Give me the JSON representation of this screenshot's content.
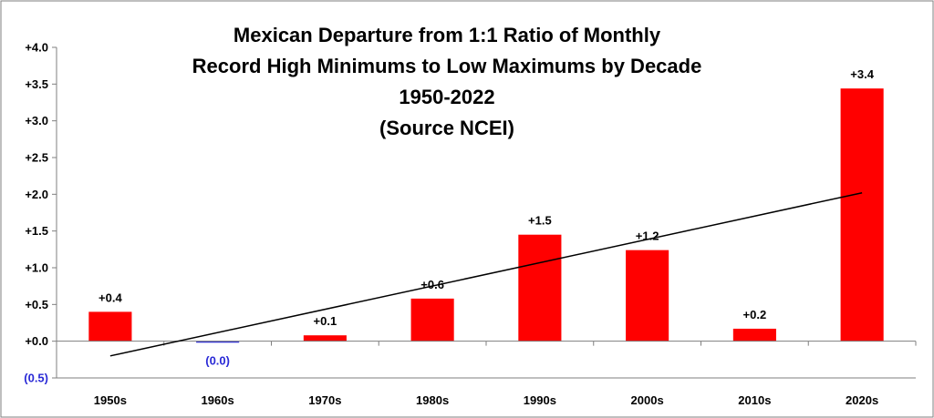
{
  "chart_data": {
    "type": "bar",
    "title_lines": [
      "Mexican Departure from 1:1 Ratio of Monthly",
      "Record High Minimums to Low Maximums by Decade",
      "1950-2022",
      "(Source NCEI)"
    ],
    "categories": [
      "1950s",
      "1960s",
      "1970s",
      "1980s",
      "1990s",
      "2000s",
      "2010s",
      "2020s"
    ],
    "values": [
      0.4,
      -0.02,
      0.08,
      0.58,
      1.45,
      1.24,
      0.17,
      3.44
    ],
    "data_labels": [
      "+0.4",
      "(0.0)",
      "+0.1",
      "+0.6",
      "+1.5",
      "+1.2",
      "+0.2",
      "+3.4"
    ],
    "positive_color": "#ff0000",
    "negative_color": "#2a2ad6",
    "trendline": {
      "start": -0.2,
      "end": 2.02,
      "color": "#000000"
    },
    "ylim": [
      -0.5,
      4.0
    ],
    "yticks": [
      4.0,
      3.5,
      3.0,
      2.5,
      2.0,
      1.5,
      1.0,
      0.5,
      0.0,
      -0.5
    ],
    "ytick_labels": [
      "+4.0",
      "+3.5",
      "+3.0",
      "+2.5",
      "+2.0",
      "+1.5",
      "+1.0",
      "+0.5",
      "+0.0",
      "(0.5)"
    ],
    "grid": false,
    "legend": "none",
    "xlabel": "",
    "ylabel": ""
  }
}
